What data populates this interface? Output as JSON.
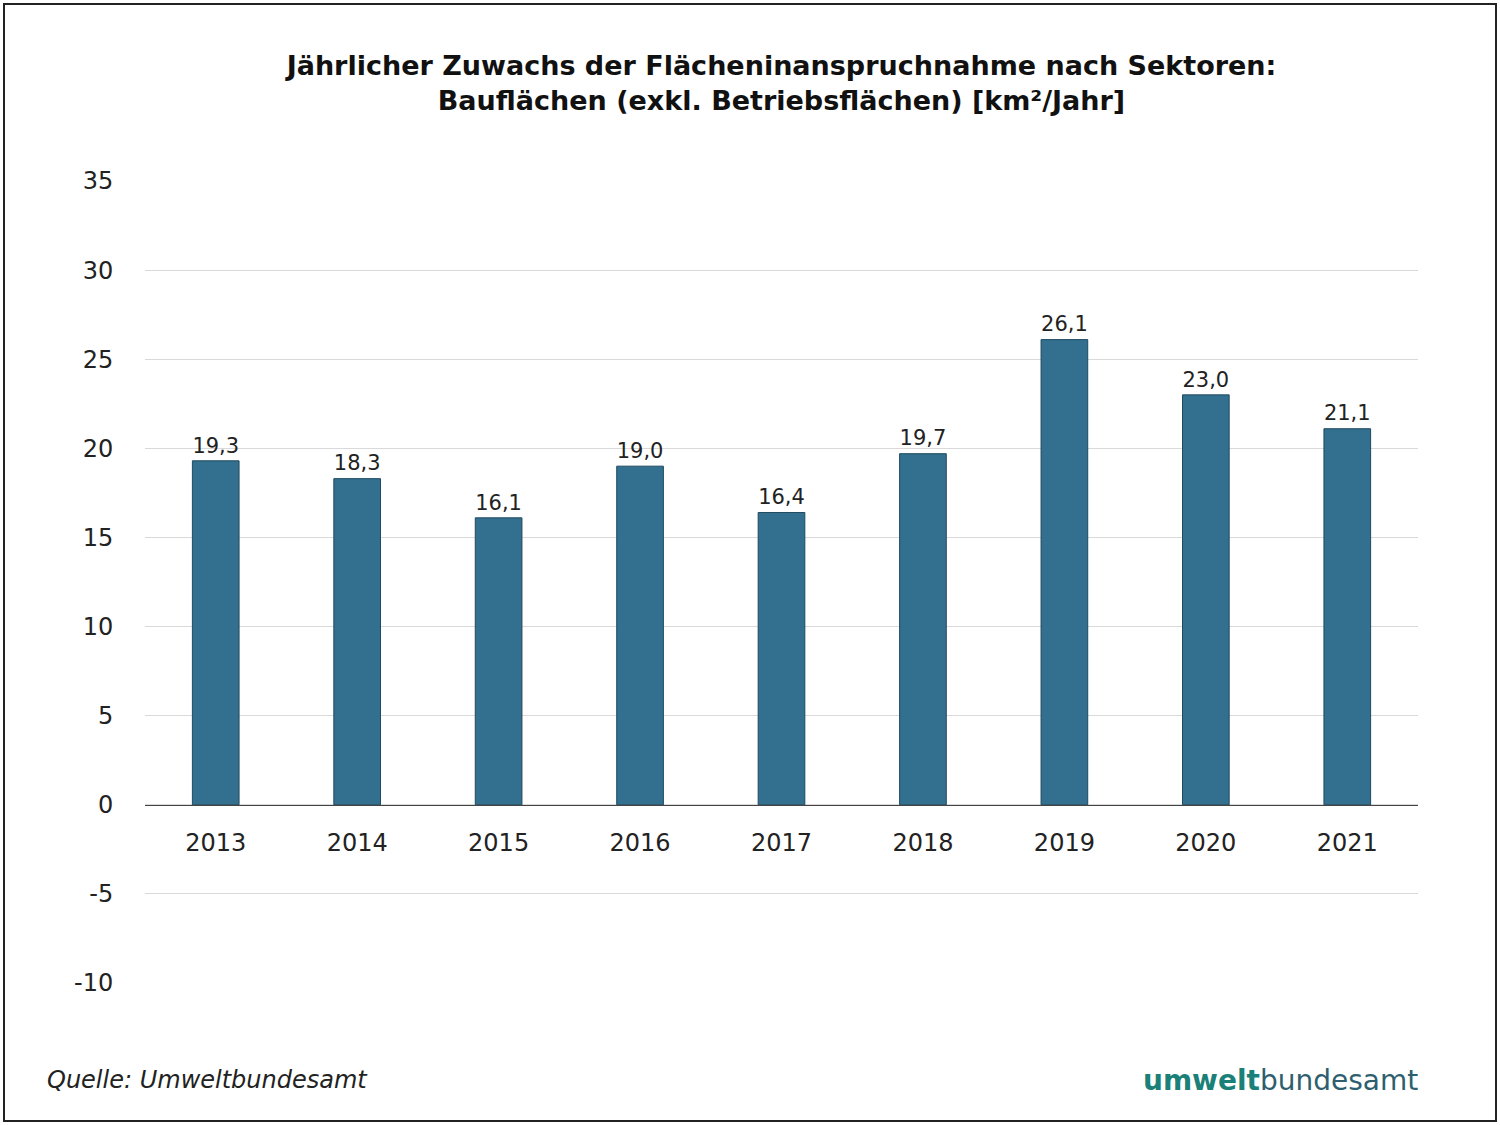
{
  "chart_data": {
    "type": "bar",
    "title": "Jährlicher Zuwachs der Flächeninanspruchnahme nach Sektoren:\nBauflächen (exkl. Betriebsflächen) [km²/Jahr]",
    "categories": [
      "2013",
      "2014",
      "2015",
      "2016",
      "2017",
      "2018",
      "2019",
      "2020",
      "2021"
    ],
    "values": [
      19.3,
      18.3,
      16.1,
      19.0,
      16.4,
      19.7,
      26.1,
      23.0,
      21.1
    ],
    "value_labels": [
      "19,3",
      "18,3",
      "16,1",
      "19,0",
      "16,4",
      "19,7",
      "26,1",
      "23,0",
      "21,1"
    ],
    "data_labels": true,
    "color": "#336f8e",
    "ylim": [
      -10,
      35
    ],
    "yticks": [
      -10,
      -5,
      0,
      5,
      10,
      15,
      20,
      25,
      30,
      35
    ],
    "grid": true,
    "source": "Quelle: Umweltbundesamt",
    "logo": [
      "umwelt",
      "bundesamt"
    ]
  }
}
